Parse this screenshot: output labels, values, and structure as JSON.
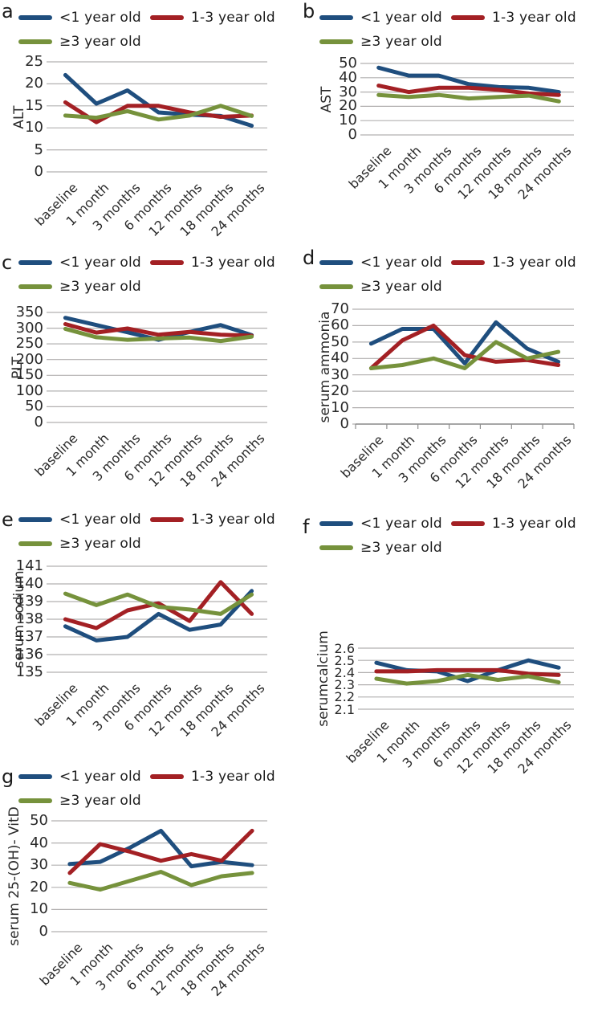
{
  "legend": {
    "position": "top-left",
    "items": [
      {
        "label": "<1 year old",
        "color": "#1f4e7e"
      },
      {
        "label": "1-3 year old",
        "color": "#a32024"
      },
      {
        "label": "≥3 year old",
        "color": "#76923c"
      }
    ]
  },
  "chart_data": [
    {
      "id": "a",
      "letter": "a",
      "type": "line",
      "title": "",
      "ylabel": "ALT",
      "xlabel": "",
      "ylim": [
        0,
        25
      ],
      "yticks": [
        0,
        5,
        10,
        15,
        20,
        25
      ],
      "grid": true,
      "legend_position": "top",
      "categories": [
        "baseline",
        "1 month",
        "3 months",
        "6 months",
        "12 months",
        "18 months",
        "24 months"
      ],
      "series": [
        {
          "name": "<1 year old",
          "values": [
            22,
            15.5,
            18.5,
            13.5,
            13,
            12.7,
            10.5
          ]
        },
        {
          "name": "1-3 year old",
          "values": [
            15.8,
            11.3,
            15,
            15,
            13.5,
            12.5,
            12.8
          ]
        },
        {
          "name": "≥3 year old",
          "values": [
            12.8,
            12.3,
            13.8,
            11.9,
            12.8,
            15,
            12.7
          ]
        }
      ]
    },
    {
      "id": "b",
      "letter": "b",
      "type": "line",
      "title": "",
      "ylabel": "AST",
      "xlabel": "",
      "ylim": [
        0,
        50
      ],
      "yticks": [
        0,
        10,
        20,
        30,
        40,
        50
      ],
      "grid": true,
      "legend_position": "top",
      "categories": [
        "baseline",
        "1 month",
        "3 months",
        "6 months",
        "12 months",
        "18 months",
        "24 months"
      ],
      "series": [
        {
          "name": "<1 year old",
          "values": [
            47,
            41.5,
            41.5,
            35.5,
            33.5,
            33,
            30
          ]
        },
        {
          "name": "1-3 year old",
          "values": [
            34.5,
            30,
            33,
            33,
            31.5,
            29,
            28
          ]
        },
        {
          "name": "≥3 year old",
          "values": [
            28,
            26.5,
            28,
            25.5,
            26.5,
            27.5,
            23.5
          ]
        }
      ]
    },
    {
      "id": "c",
      "letter": "c",
      "type": "line",
      "title": "",
      "ylabel": "PLT",
      "xlabel": "",
      "ylim": [
        0,
        350
      ],
      "yticks": [
        0,
        50,
        100,
        150,
        200,
        250,
        300,
        350
      ],
      "grid": true,
      "legend_position": "top",
      "categories": [
        "baseline",
        "1 month",
        "3 months",
        "6 months",
        "12 months",
        "18 months",
        "24 months"
      ],
      "series": [
        {
          "name": "<1 year old",
          "values": [
            333,
            310,
            287,
            263,
            288,
            310,
            278
          ]
        },
        {
          "name": "1-3 year old",
          "values": [
            313,
            286,
            299,
            279,
            288,
            279,
            276
          ]
        },
        {
          "name": "≥3 year old",
          "values": [
            298,
            271,
            263,
            267,
            270,
            259,
            273
          ]
        }
      ]
    },
    {
      "id": "d",
      "letter": "d",
      "type": "line",
      "title": "",
      "ylabel": "serum ammonia",
      "xlabel": "",
      "ylim": [
        0,
        70
      ],
      "yticks": [
        0,
        10,
        20,
        30,
        40,
        50,
        60,
        70
      ],
      "grid": true,
      "legend_position": "top",
      "categories": [
        "baseline",
        "1 month",
        "3 months",
        "6 months",
        "12 months",
        "18 months",
        "24 months"
      ],
      "series": [
        {
          "name": "<1 year old",
          "values": [
            49,
            58,
            58,
            37,
            62,
            46,
            38
          ]
        },
        {
          "name": "1-3 year old",
          "values": [
            34,
            51,
            60,
            42,
            38,
            39,
            36
          ]
        },
        {
          "name": "≥3 year old",
          "values": [
            34,
            36,
            40,
            34,
            50,
            40,
            44
          ]
        }
      ]
    },
    {
      "id": "e",
      "letter": "e",
      "type": "line",
      "title": "",
      "ylabel": "serum sodium",
      "xlabel": "",
      "ylim": [
        135,
        141
      ],
      "yticks": [
        135,
        136,
        137,
        138,
        139,
        140,
        141
      ],
      "grid": true,
      "legend_position": "top",
      "categories": [
        "baseline",
        "1 month",
        "3 months",
        "6 months",
        "12 months",
        "18 months",
        "24 months"
      ],
      "series": [
        {
          "name": "<1 year old",
          "values": [
            137.6,
            136.8,
            137,
            138.3,
            137.4,
            137.7,
            139.6
          ]
        },
        {
          "name": "1-3 year old",
          "values": [
            138,
            137.5,
            138.5,
            138.9,
            137.9,
            140.1,
            138.3
          ]
        },
        {
          "name": "≥3 year old",
          "values": [
            139.45,
            138.8,
            139.4,
            138.7,
            138.55,
            138.3,
            139.4
          ]
        }
      ]
    },
    {
      "id": "f",
      "letter": "f",
      "type": "line",
      "title": "",
      "ylabel": "serumcalcium",
      "xlabel": "",
      "ylim": [
        2.1,
        2.6
      ],
      "yticks": [
        2.1,
        2.2,
        2.3,
        2.4,
        2.5,
        2.6
      ],
      "grid": true,
      "legend_position": "top",
      "categories": [
        "baseline",
        "1 month",
        "3 months",
        "6 months",
        "12 months",
        "18 months",
        "24 months"
      ],
      "series": [
        {
          "name": "<1 year old",
          "values": [
            2.48,
            2.42,
            2.41,
            2.33,
            2.42,
            2.5,
            2.44
          ]
        },
        {
          "name": "1-3 year old",
          "values": [
            2.41,
            2.41,
            2.42,
            2.42,
            2.42,
            2.39,
            2.38
          ]
        },
        {
          "name": "≥3 year old",
          "values": [
            2.35,
            2.31,
            2.33,
            2.38,
            2.34,
            2.37,
            2.32
          ]
        }
      ]
    },
    {
      "id": "g",
      "letter": "g",
      "type": "line",
      "title": "",
      "ylabel": "serum 25-(OH)- VitD",
      "xlabel": "",
      "ylim": [
        0,
        50
      ],
      "yticks": [
        0,
        10,
        20,
        30,
        40,
        50
      ],
      "grid": true,
      "legend_position": "top",
      "categories": [
        "baseline",
        "1 month",
        "3 months",
        "6 months",
        "12 months",
        "18 months",
        "24 months"
      ],
      "series": [
        {
          "name": "<1 year old",
          "values": [
            30.5,
            31.5,
            38,
            45.5,
            29.5,
            31.5,
            30
          ]
        },
        {
          "name": "1-3 year old",
          "values": [
            26.5,
            39.5,
            36,
            32,
            35,
            32,
            45.5
          ]
        },
        {
          "name": "≥3 year old",
          "values": [
            22,
            19,
            23,
            27,
            21,
            25,
            26.5
          ]
        }
      ]
    }
  ]
}
